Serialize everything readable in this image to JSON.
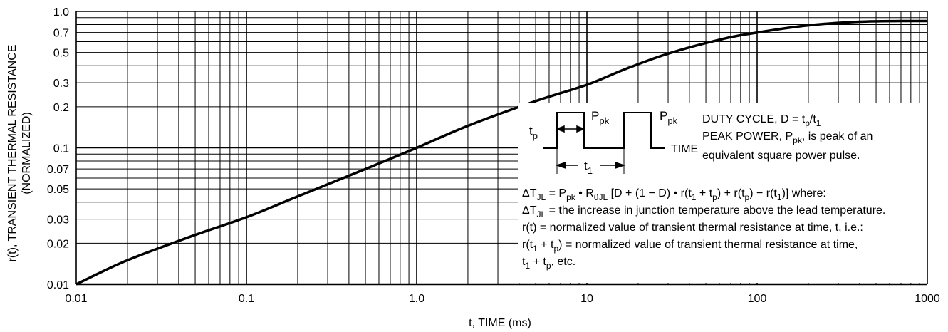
{
  "chart_data": {
    "type": "line",
    "x_scale": "log",
    "y_scale": "log",
    "xlim": [
      0.01,
      1000
    ],
    "ylim": [
      0.01,
      1.0
    ],
    "grid": true,
    "xlabel": "t, TIME (ms)",
    "ylabel_line1": "r(t), TRANSIENT THERMAL RESISTANCE",
    "ylabel_line2": "(NORMALIZED)",
    "x_ticks": [
      0.01,
      0.1,
      1.0,
      10,
      100,
      1000
    ],
    "x_tick_labels": [
      "0.01",
      "0.1",
      "1.0",
      "10",
      "100",
      "1000"
    ],
    "y_ticks": [
      0.01,
      0.02,
      0.03,
      0.05,
      0.07,
      0.1,
      0.2,
      0.3,
      0.5,
      0.7,
      1.0
    ],
    "y_tick_labels": [
      "0.01",
      "0.02",
      "0.03",
      "0.05",
      "0.07",
      "0.1",
      "0.2",
      "0.3",
      "0.5",
      "0.7",
      "1.0"
    ],
    "series": [
      {
        "x": [
          0.01,
          0.02,
          0.05,
          0.1,
          0.2,
          0.5,
          1.0,
          2.0,
          5.0,
          10,
          17,
          30,
          60,
          100,
          200,
          400,
          700,
          1000
        ],
        "y": [
          0.01,
          0.015,
          0.023,
          0.031,
          0.044,
          0.07,
          0.1,
          0.145,
          0.22,
          0.29,
          0.38,
          0.49,
          0.62,
          0.7,
          0.79,
          0.84,
          0.85,
          0.85
        ]
      }
    ],
    "annotations": {
      "ppk": "P",
      "ppk_sub": "pk",
      "tp": "t",
      "tp_sub": "p",
      "t1": "t",
      "t1_sub": "1",
      "time": "TIME",
      "duty_cycle": "DUTY CYCLE, D = t",
      "duty_cycle_sub1": "p",
      "duty_cycle_mid": "/t",
      "duty_cycle_sub2": "1",
      "peak_power_a": "PEAK POWER, P",
      "peak_power_sub": "pk",
      "peak_power_b": ", is peak of an",
      "equivalent": "equivalent square power pulse.",
      "eq1_a": "ΔT",
      "eq1_sub1": "JL",
      "eq1_b": " = P",
      "eq1_sub2": "pk",
      "eq1_c": " • R",
      "eq1_sub3": "θJL",
      "eq1_d": " [D + (1 − D) • r(t",
      "eq1_sub4": "1",
      "eq1_e": " + t",
      "eq1_sub5": "p",
      "eq1_f": ") + r(t",
      "eq1_sub6": "p",
      "eq1_g": ") − r(t",
      "eq1_sub7": "1",
      "eq1_h": ")] where:",
      "eq2_a": "ΔT",
      "eq2_sub": "JL",
      "eq2_b": " = the increase in junction temperature above the lead temperature.",
      "eq3": "r(t) = normalized value of transient thermal resistance at time, t, i.e.:",
      "eq4_a": "r(t",
      "eq4_sub1": "1",
      "eq4_b": " + t",
      "eq4_sub2": "p",
      "eq4_c": ") = normalized value of transient thermal resistance at time,",
      "eq5_a": "t",
      "eq5_sub1": "1",
      "eq5_b": " + t",
      "eq5_sub2": "p",
      "eq5_c": ", etc."
    }
  }
}
